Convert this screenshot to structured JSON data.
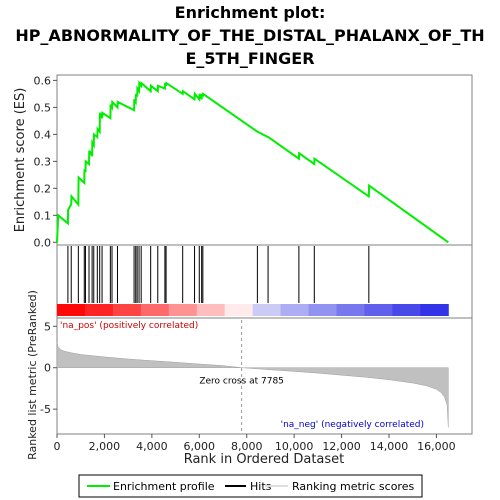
{
  "chart_data": {
    "type": "line",
    "title_lines": [
      "Enrichment plot:",
      "HP_ABNORMALITY_OF_THE_DISTAL_PHALANX_OF_TH",
      "E_5TH_FINGER"
    ],
    "es_panel": {
      "ylabel": "Enrichment score (ES)",
      "ylim": [
        -0.01,
        0.62
      ],
      "yticks": [
        "0.0",
        "0.1",
        "0.2",
        "0.3",
        "0.4",
        "0.5",
        "0.6"
      ],
      "ytick_values": [
        0,
        0.1,
        0.2,
        0.3,
        0.4,
        0.5,
        0.6
      ],
      "series_name": "Enrichment profile",
      "color": "#00ee00",
      "x": [
        0,
        50,
        460,
        470,
        600,
        610,
        900,
        910,
        1150,
        1160,
        1200,
        1210,
        1350,
        1360,
        1480,
        1490,
        1550,
        1560,
        1700,
        1710,
        1800,
        1810,
        1900,
        1910,
        2250,
        2260,
        2320,
        2330,
        2550,
        2560,
        3250,
        3260,
        3320,
        3330,
        3380,
        3390,
        3460,
        3470,
        3550,
        3560,
        3950,
        3960,
        4250,
        4260,
        4550,
        4560,
        4600,
        4610,
        5300,
        5310,
        5800,
        5810,
        6000,
        6010,
        6100,
        6110,
        6150,
        6160,
        8450,
        8460,
        8900,
        8910,
        10200,
        10210,
        10850,
        10860,
        13150,
        13160,
        16500
      ],
      "y": [
        0.0,
        0.1,
        0.07,
        0.12,
        0.14,
        0.17,
        0.14,
        0.24,
        0.22,
        0.27,
        0.26,
        0.3,
        0.29,
        0.34,
        0.32,
        0.37,
        0.36,
        0.4,
        0.39,
        0.42,
        0.41,
        0.48,
        0.46,
        0.48,
        0.46,
        0.51,
        0.5,
        0.52,
        0.5,
        0.52,
        0.49,
        0.53,
        0.52,
        0.55,
        0.54,
        0.57,
        0.56,
        0.59,
        0.58,
        0.59,
        0.56,
        0.58,
        0.56,
        0.58,
        0.57,
        0.59,
        0.58,
        0.59,
        0.55,
        0.56,
        0.53,
        0.55,
        0.53,
        0.55,
        0.53,
        0.55,
        0.54,
        0.55,
        0.41,
        0.41,
        0.39,
        0.39,
        0.31,
        0.33,
        0.29,
        0.31,
        0.17,
        0.21,
        0.0
      ]
    },
    "hits": {
      "series_name": "Hits",
      "positions": [
        460,
        600,
        900,
        1150,
        1200,
        1350,
        1480,
        1550,
        1700,
        1800,
        1900,
        2250,
        2320,
        2550,
        3250,
        3320,
        3380,
        3460,
        3550,
        3950,
        4250,
        4550,
        4600,
        5300,
        5800,
        6000,
        6100,
        6150,
        8450,
        8900,
        10200,
        10850,
        13150
      ]
    },
    "rank_panel": {
      "ylabel": "Ranked list metric (PreRanked)",
      "series_name": "Ranking metric scores",
      "ylim": [
        -8,
        6
      ],
      "yticks": [
        "5",
        "0",
        "-5"
      ],
      "ytick_values": [
        5,
        0,
        -5
      ],
      "x": [
        0,
        50,
        150,
        300,
        600,
        1000,
        2000,
        3000,
        4000,
        5000,
        6000,
        7000,
        7785,
        9000,
        10000,
        11000,
        12000,
        13000,
        14000,
        15000,
        15600,
        16000,
        16200,
        16350,
        16450,
        16500
      ],
      "y": [
        3.1,
        2.5,
        2.2,
        2.0,
        1.8,
        1.6,
        1.3,
        1.05,
        0.85,
        0.65,
        0.45,
        0.25,
        0.0,
        -0.25,
        -0.45,
        -0.65,
        -0.9,
        -1.15,
        -1.45,
        -1.85,
        -2.2,
        -2.6,
        -3.0,
        -3.6,
        -4.5,
        -7.2
      ],
      "annotations": {
        "zero_cross": "Zero cross at 7785",
        "zero_cross_x": 7785,
        "pos_label": "'na_pos' (positively correlated)",
        "neg_label": "'na_neg' (negatively correlated)"
      }
    },
    "x_axis": {
      "xlabel": "Rank in Ordered Dataset",
      "xlim": [
        0,
        17500
      ],
      "xticks": [
        "0",
        "2,000",
        "4,000",
        "6,000",
        "8,000",
        "10,000",
        "12,000",
        "14,000",
        "16,000"
      ],
      "xtick_values": [
        0,
        2000,
        4000,
        6000,
        8000,
        10000,
        12000,
        14000,
        16000
      ],
      "n_genes": 16500
    },
    "legend": {
      "placement": "bottom",
      "entries": [
        "Enrichment profile",
        "Hits",
        "Ranking metric scores"
      ]
    },
    "colors": {
      "es_line": "#00ee00",
      "hit_line": "#000000",
      "metric_fill": "#c0c0c0",
      "pos_text": "#cc0000",
      "neg_text": "#0000cc",
      "bar_pos": "#ff0000",
      "bar_neg": "#0000ff",
      "zero_line": "#999999"
    }
  }
}
